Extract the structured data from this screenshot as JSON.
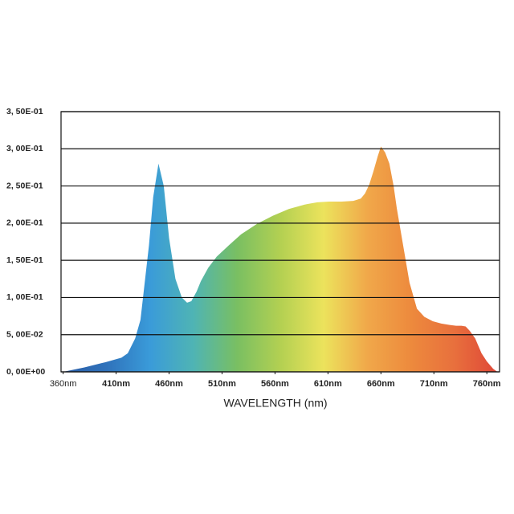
{
  "chart_data": {
    "type": "area",
    "x_label": "WAVELENGTH (nm)",
    "x": [
      360,
      380,
      400,
      415,
      421,
      428,
      433,
      437,
      441,
      445,
      450,
      455,
      460,
      466,
      472,
      477,
      481,
      486,
      490,
      497,
      505,
      517,
      528,
      543,
      558,
      573,
      588,
      600,
      611,
      623,
      634,
      641,
      645,
      649,
      653,
      657,
      660,
      664,
      668,
      672,
      675,
      681,
      687,
      694,
      701,
      709,
      717,
      725,
      731,
      736,
      740,
      744,
      749,
      755,
      760,
      766,
      770
    ],
    "values": [
      0,
      0.006,
      0.013,
      0.019,
      0.025,
      0.045,
      0.07,
      0.12,
      0.17,
      0.235,
      0.28,
      0.25,
      0.18,
      0.125,
      0.1,
      0.093,
      0.095,
      0.108,
      0.122,
      0.14,
      0.155,
      0.171,
      0.185,
      0.199,
      0.21,
      0.219,
      0.225,
      0.228,
      0.229,
      0.229,
      0.23,
      0.233,
      0.24,
      0.252,
      0.27,
      0.29,
      0.303,
      0.295,
      0.28,
      0.25,
      0.22,
      0.17,
      0.12,
      0.085,
      0.074,
      0.068,
      0.065,
      0.063,
      0.062,
      0.062,
      0.061,
      0.055,
      0.045,
      0.025,
      0.014,
      0.004,
      0
    ],
    "colors": [
      "#2b5ea7",
      "#2f72bb",
      "#3a9bd9",
      "#4fb4b4",
      "#79bf62",
      "#b3d052",
      "#ece35c",
      "#f0a84a",
      "#ed8a3d",
      "#e8703d",
      "#df4737"
    ],
    "xlim": [
      358,
      772
    ],
    "ylim": [
      0,
      0.35
    ],
    "xticks": [
      {
        "value": 360,
        "label": "360nm"
      },
      {
        "value": 410,
        "label": "410nm"
      },
      {
        "value": 460,
        "label": "460nm"
      },
      {
        "value": 510,
        "label": "510nm"
      },
      {
        "value": 560,
        "label": "560nm"
      },
      {
        "value": 610,
        "label": "610nm"
      },
      {
        "value": 660,
        "label": "660nm"
      },
      {
        "value": 710,
        "label": "710nm"
      },
      {
        "value": 760,
        "label": "760nm"
      }
    ],
    "yticks": [
      {
        "value": 0,
        "label": "0, 00E+00"
      },
      {
        "value": 0.05,
        "label": "5, 00E-02"
      },
      {
        "value": 0.1,
        "label": "1, 00E-01"
      },
      {
        "value": 0.15,
        "label": "1, 50E-01"
      },
      {
        "value": 0.2,
        "label": "2, 00E-01"
      },
      {
        "value": 0.25,
        "label": "2, 50E-01"
      },
      {
        "value": 0.3,
        "label": "3, 00E-01"
      },
      {
        "value": 0.35,
        "label": "3, 50E-01"
      }
    ],
    "grid": true
  }
}
